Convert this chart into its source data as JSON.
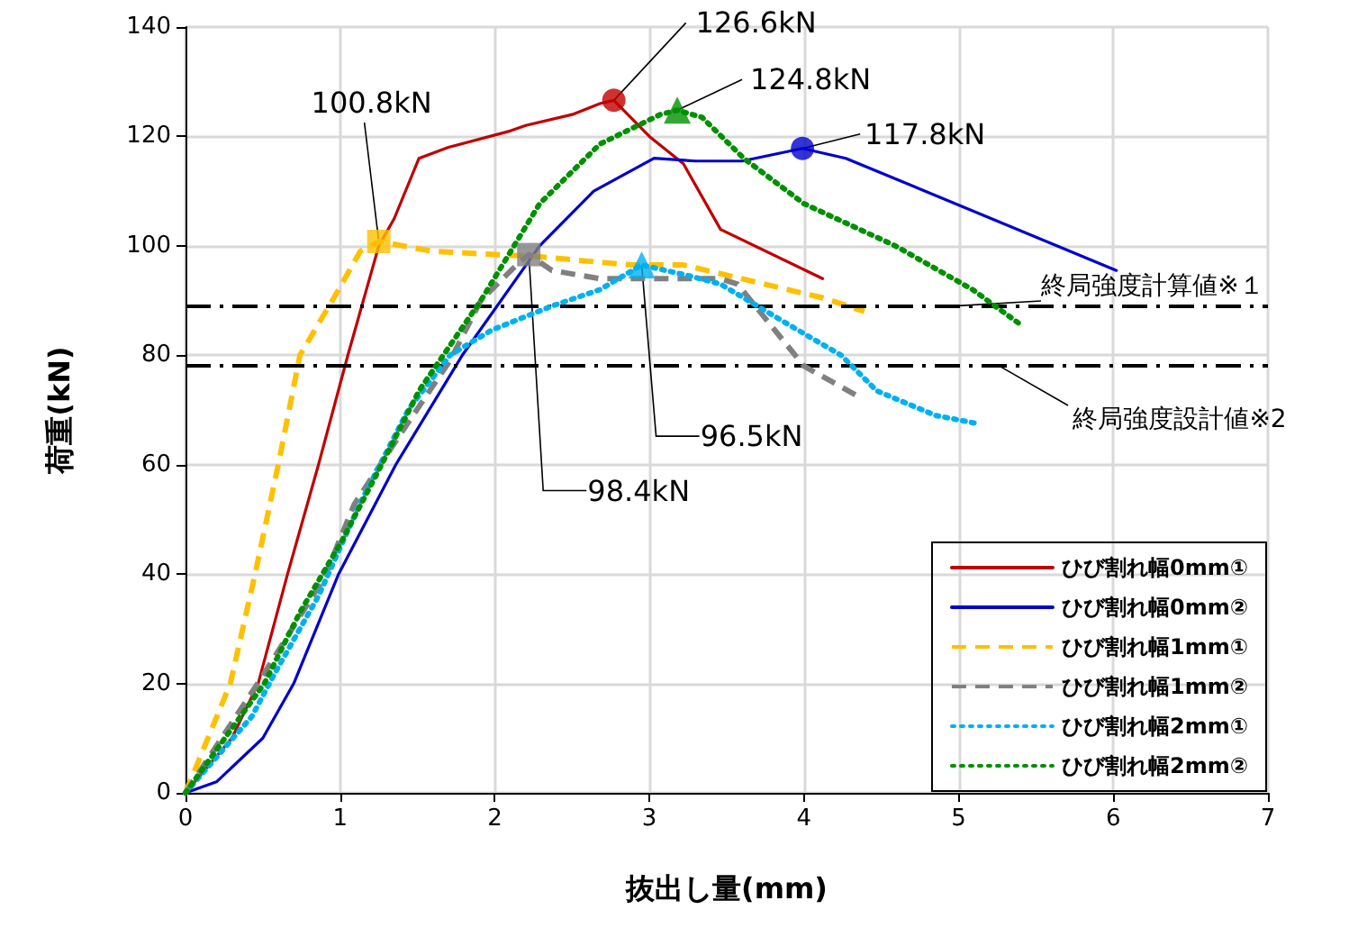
{
  "chart_data": {
    "type": "line",
    "xlabel": "抜出し量(mm)",
    "ylabel": "荷重(kN)",
    "xlim": [
      0,
      7
    ],
    "xticks": [
      0,
      1,
      2,
      3,
      4,
      5,
      6,
      7
    ],
    "ylim": [
      0,
      140
    ],
    "yticks": [
      0,
      20,
      40,
      60,
      80,
      100,
      120,
      140
    ],
    "grid": true,
    "legend": "bottom right",
    "series": [
      {
        "name": "ひび割れ幅0mm①",
        "color": "#c00000",
        "line_style": "solid",
        "x": [
          0,
          0.3,
          0.47,
          0.66,
          0.86,
          1.05,
          1.25,
          1.35,
          1.51,
          1.7,
          2.1,
          2.2,
          2.5,
          2.68,
          2.77,
          3.0,
          3.22,
          3.46,
          4.12
        ],
        "values": [
          0,
          10,
          20,
          40,
          60,
          80,
          100,
          105,
          116,
          118,
          121,
          122,
          124,
          126,
          126.6,
          120,
          115,
          103,
          94
        ]
      },
      {
        "name": "ひび割れ幅0mm②",
        "color": "#0000cc",
        "line_style": "solid",
        "x": [
          0,
          0.2,
          0.5,
          0.7,
          0.99,
          1.36,
          1.79,
          2.29,
          2.64,
          3.03,
          3.3,
          3.6,
          3.99,
          4.27,
          6.02
        ],
        "values": [
          0,
          2,
          10,
          20,
          40,
          60,
          80,
          100,
          110,
          116,
          115.5,
          115.5,
          117.8,
          116,
          95.5
        ]
      },
      {
        "name": "ひび割れ幅1mm①",
        "color": "#ffc000",
        "line_style": "dashed",
        "x": [
          0,
          0.29,
          0.45,
          0.6,
          0.74,
          0.97,
          1.13,
          1.25,
          1.6,
          2.29,
          2.88,
          3.22,
          4.12,
          4.39
        ],
        "values": [
          0,
          20,
          40,
          60,
          80,
          91,
          99,
          100.8,
          99,
          98,
          96.5,
          96.5,
          90.5,
          88
        ]
      },
      {
        "name": "ひび割れ幅1mm②",
        "color": "#808080",
        "line_style": "dashed",
        "x": [
          0,
          0.49,
          0.9,
          1.09,
          1.4,
          1.71,
          1.91,
          2.14,
          2.22,
          2.37,
          2.68,
          3.46,
          3.57,
          4.0,
          4.35
        ],
        "values": [
          0,
          21,
          39.5,
          52.7,
          66,
          79,
          90,
          96.5,
          98.4,
          95.5,
          94,
          94,
          93,
          78,
          72.5
        ]
      },
      {
        "name": "ひび割れ幅2mm①",
        "color": "#00b0f0",
        "line_style": "dotted",
        "x": [
          0,
          0.43,
          0.58,
          0.86,
          1.13,
          1.44,
          1.71,
          1.98,
          2.37,
          2.68,
          2.95,
          3.26,
          3.46,
          3.96,
          4.24,
          4.47,
          4.85,
          5.12
        ],
        "values": [
          0,
          14,
          22,
          36,
          53,
          70,
          80,
          84.6,
          89,
          92,
          96.5,
          94.5,
          93,
          84.6,
          80,
          73.5,
          69,
          67.5
        ]
      },
      {
        "name": "ひび割れ幅2mm②",
        "color": "#009000",
        "line_style": "dotted",
        "x": [
          0,
          0.51,
          0.74,
          1.01,
          1.25,
          1.51,
          1.91,
          2.29,
          2.68,
          3.07,
          3.18,
          3.34,
          3.61,
          4.0,
          4.59,
          5.09,
          5.4
        ],
        "values": [
          0,
          20,
          33,
          46,
          59,
          73.5,
          90,
          107.7,
          118.6,
          124,
          124.8,
          123.5,
          116,
          107.7,
          100,
          92,
          85.6
        ]
      },
      {
        "type": "scatter",
        "color": "#c00000",
        "marker": "circle",
        "x": [
          2.77
        ],
        "values": [
          126.6
        ]
      },
      {
        "type": "scatter",
        "color": "#0000cc",
        "marker": "circle",
        "x": [
          3.99
        ],
        "values": [
          117.8
        ]
      },
      {
        "type": "scatter",
        "color": "#ffc000",
        "marker": "square",
        "x": [
          1.25
        ],
        "values": [
          100.8
        ]
      },
      {
        "type": "scatter",
        "color": "#808080",
        "marker": "square",
        "x": [
          2.22
        ],
        "values": [
          98.4
        ]
      },
      {
        "type": "scatter",
        "color": "#00b0f0",
        "marker": "triangle",
        "x": [
          2.95
        ],
        "values": [
          96.5
        ]
      },
      {
        "type": "scatter",
        "color": "#009000",
        "marker": "triangle",
        "x": [
          3.18
        ],
        "values": [
          124.8
        ]
      }
    ],
    "ref_lines": [
      {
        "axis": "y",
        "value": 89,
        "label": "終局強度計算値※１",
        "line_style": "dashdot",
        "color": "#000000"
      },
      {
        "axis": "y",
        "value": 78,
        "label": "終局強度設計値※2",
        "line_style": "dashdot",
        "color": "#000000"
      }
    ],
    "annotations": [
      {
        "text": "126.6kN",
        "x": 2.77,
        "y": 126.6
      },
      {
        "text": "124.8kN",
        "x": 3.18,
        "y": 124.8
      },
      {
        "text": "117.8kN",
        "x": 3.99,
        "y": 117.8
      },
      {
        "text": "100.8kN",
        "x": 1.25,
        "y": 100.8
      },
      {
        "text": "98.4kN",
        "x": 2.22,
        "y": 98.4
      },
      {
        "text": "96.5kN",
        "x": 2.95,
        "y": 96.5
      }
    ]
  }
}
